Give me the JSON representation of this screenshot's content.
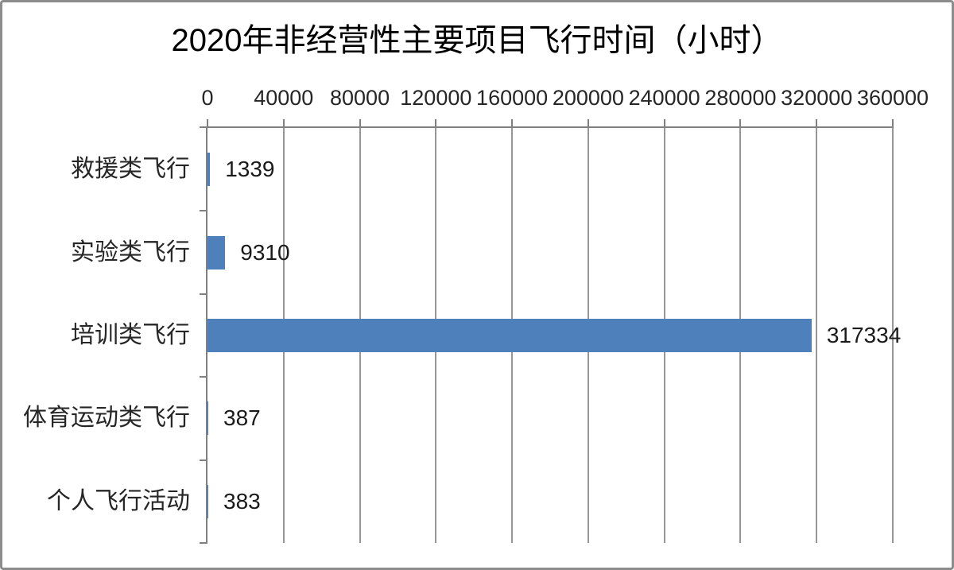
{
  "frame": {
    "background": "#ffffff",
    "border_color": "#8c8c8c"
  },
  "chart_data": {
    "type": "bar",
    "orientation": "horizontal",
    "title": "2020年非经营性主要项目飞行时间（小时）",
    "categories": [
      "救援类飞行",
      "实验类飞行",
      "培训类飞行",
      "体育运动类飞行",
      "个人飞行活动"
    ],
    "values": [
      1339,
      9310,
      317334,
      387,
      383
    ],
    "data_labels": [
      "1339",
      "9310",
      "317334",
      "387",
      "383"
    ],
    "x_ticks": [
      0,
      40000,
      80000,
      120000,
      160000,
      200000,
      240000,
      280000,
      320000,
      360000
    ],
    "x_tick_labels": [
      "0",
      "40000",
      "80000",
      "120000",
      "160000",
      "200000",
      "240000",
      "280000",
      "320000",
      "360000"
    ],
    "xlim": [
      0,
      360000
    ],
    "xlabel": "",
    "ylabel": "",
    "grid": true,
    "legend": "none",
    "value_axis_position": "top",
    "data_labels_shown": true,
    "bar_color": "#4e80bc",
    "gridline_color": "#969696",
    "axis_color": "#808080",
    "text_color": "#262626"
  }
}
